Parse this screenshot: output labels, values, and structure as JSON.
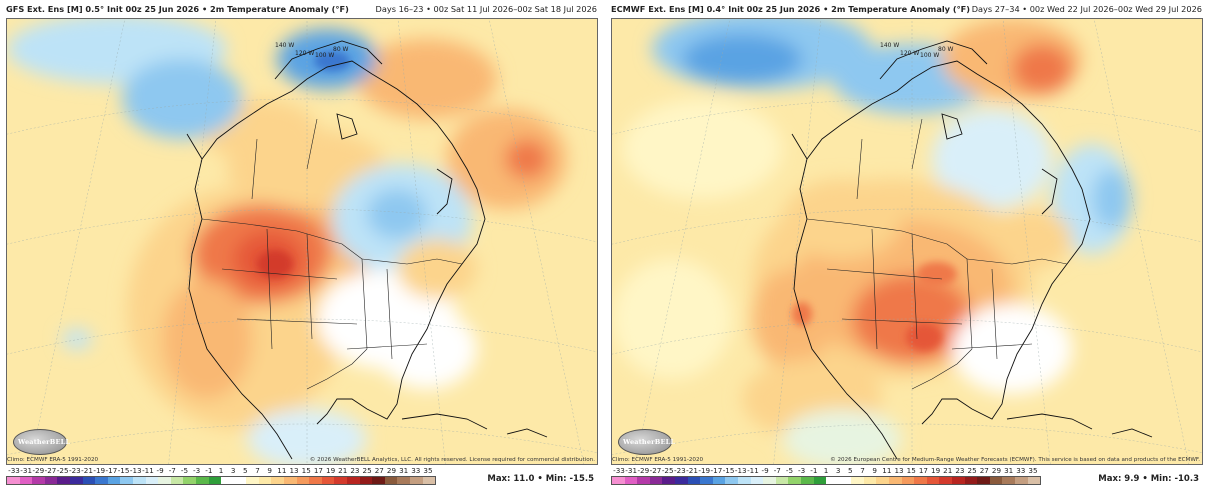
{
  "colors": {
    "background_anomaly_warm_light": "#fde9a8",
    "colorbar": [
      "#f58fd1",
      "#e05fc4",
      "#b43aa8",
      "#8a2a97",
      "#5a1c8a",
      "#3b2a9c",
      "#2b4fb5",
      "#3a77cf",
      "#5aa3e3",
      "#8ec8f0",
      "#bde3f7",
      "#d9eff9",
      "#e7f4e1",
      "#c8e8a6",
      "#93d36b",
      "#5bb84a",
      "#2f9e3a",
      "#ffffff",
      "#ffffff",
      "#fff6c6",
      "#fde9a8",
      "#fcd48c",
      "#f9b873",
      "#f59a5c",
      "#ef7848",
      "#e55638",
      "#d33a2c",
      "#b82520",
      "#931b1a",
      "#6e1a16",
      "#8a5a3c",
      "#a87a5a",
      "#c49e80",
      "#d9bfa6"
    ]
  },
  "colorbar_ticks": [
    "-33",
    "-31",
    "-29",
    "-27",
    "-25",
    "-23",
    "-21",
    "-19",
    "-17",
    "-15",
    "-13",
    "-11",
    "-9",
    "-7",
    "-5",
    "-3",
    "-1",
    "1",
    "3",
    "5",
    "7",
    "9",
    "11",
    "13",
    "15",
    "17",
    "19",
    "21",
    "23",
    "25",
    "27",
    "29",
    "31",
    "33",
    "35"
  ],
  "left": {
    "model": "GFS Ext.  Ens [M] 0.5",
    "degree": "°",
    "init": "Init 00z 25 Jun 2026 • 2m Temperature Anomaly (°F)",
    "days": "Days 16–23 • 00z Sat 11 Jul 2026–00z Sat 18 Jul 2026",
    "climo": "Climo: ECMWF ERA-5 1991-2020",
    "copyright": "© 2026 WeatherBELL Analytics, LLC. All rights reserved. License required for commercial distribution.",
    "maxmin": "Max: 11.0 • Min: -15.5",
    "logo": "WeatherBELL",
    "lon_labels": [
      "140 W",
      "120 W",
      "100 W",
      "80 W"
    ]
  },
  "right": {
    "model": "ECMWF Ext.  Ens [M] 0.4",
    "degree": "°",
    "init": "Init 00z 25 Jun 2026 • 2m Temperature Anomaly (°F)",
    "days": "Days 27–34 • 00z Wed 22 Jul 2026–00z Wed 29 Jul 2026",
    "climo": "Climo: ECMWF ERA-5 1991-2020",
    "copyright": "© 2026 European Centre for Medium-Range Weather Forecasts (ECMWF). This service is based on data and products of the ECMWF.",
    "maxmin": "Max: 9.9 • Min: -10.3",
    "logo": "WeatherBELL",
    "lon_labels": [
      "140 W",
      "120 W",
      "100 W",
      "80 W"
    ]
  }
}
